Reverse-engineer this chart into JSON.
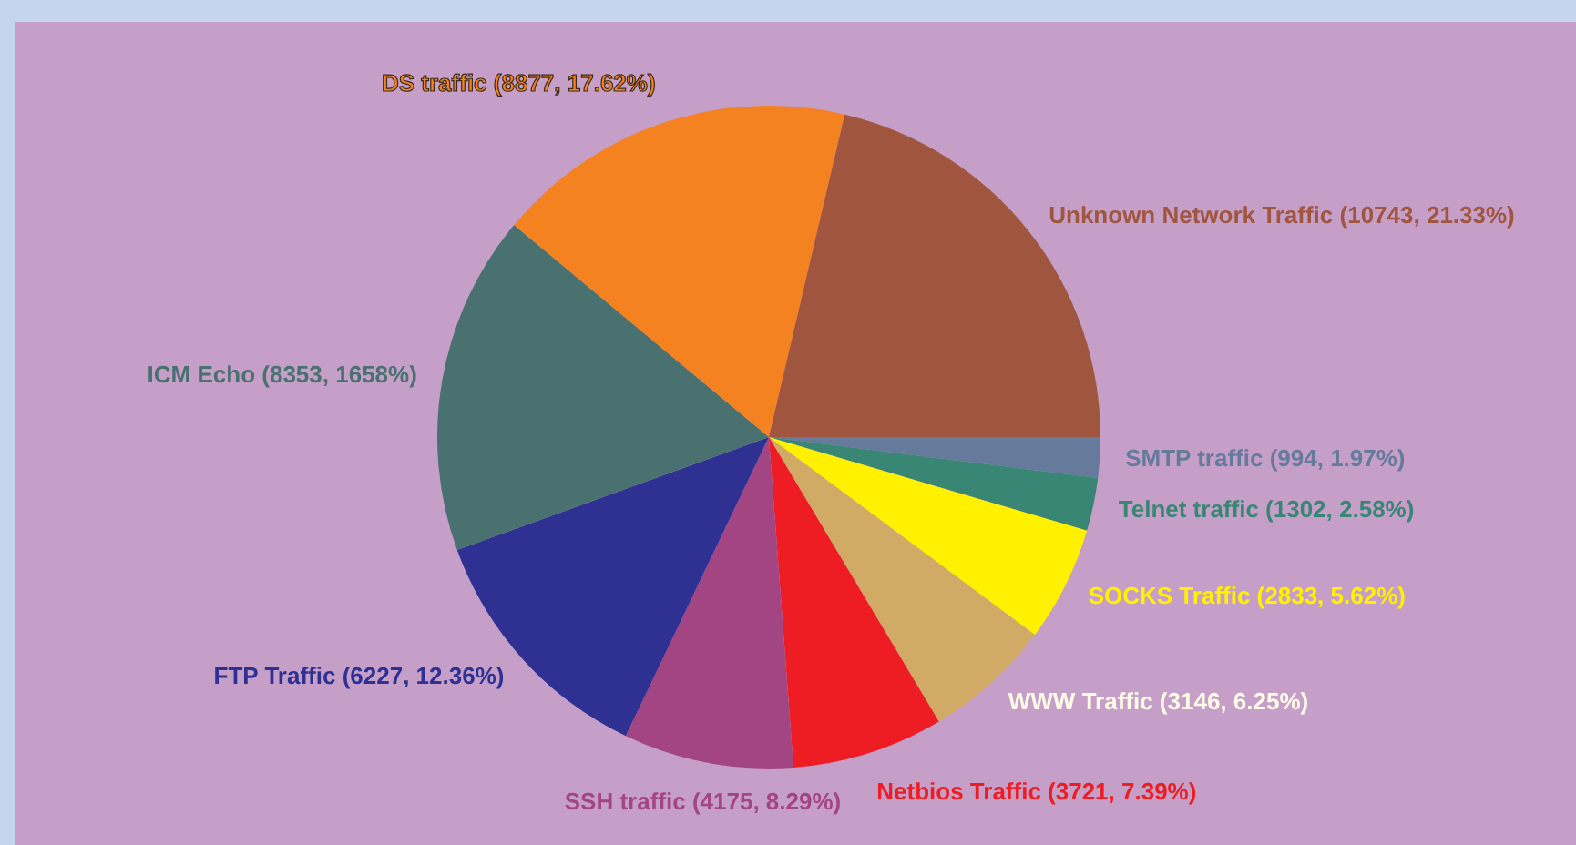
{
  "chart_data": {
    "type": "pie",
    "categories": [
      "SMTP traffic",
      "Telnet traffic",
      "SOCKS Traffic",
      "WWW Traffic",
      "Netbios Traffic",
      "SSH traffic",
      "FTP Traffic",
      "ICM Echo",
      "DS traffic",
      "Unknown Network Traffic"
    ],
    "values": [
      994,
      1302,
      2833,
      3146,
      3721,
      4175,
      6227,
      8353,
      8877,
      10743
    ],
    "value_labels": [
      "(994, 1.97%)",
      "(1302, 2.58%)",
      "(2833, 5.62%)",
      "(3146, 6.25%)",
      "(3721, 7.39%)",
      "(4175, 8.29%)",
      "(6227, 12.36%)",
      "(8353, 1658%)",
      "(8877, 17.62%)",
      "(10743, 21.33%)"
    ],
    "colors": [
      "#667b9b",
      "#3a8674",
      "#fff100",
      "#d1ab66",
      "#ee1d23",
      "#a44583",
      "#2e3092",
      "#497170",
      "#f48221",
      "#a0553e"
    ]
  }
}
